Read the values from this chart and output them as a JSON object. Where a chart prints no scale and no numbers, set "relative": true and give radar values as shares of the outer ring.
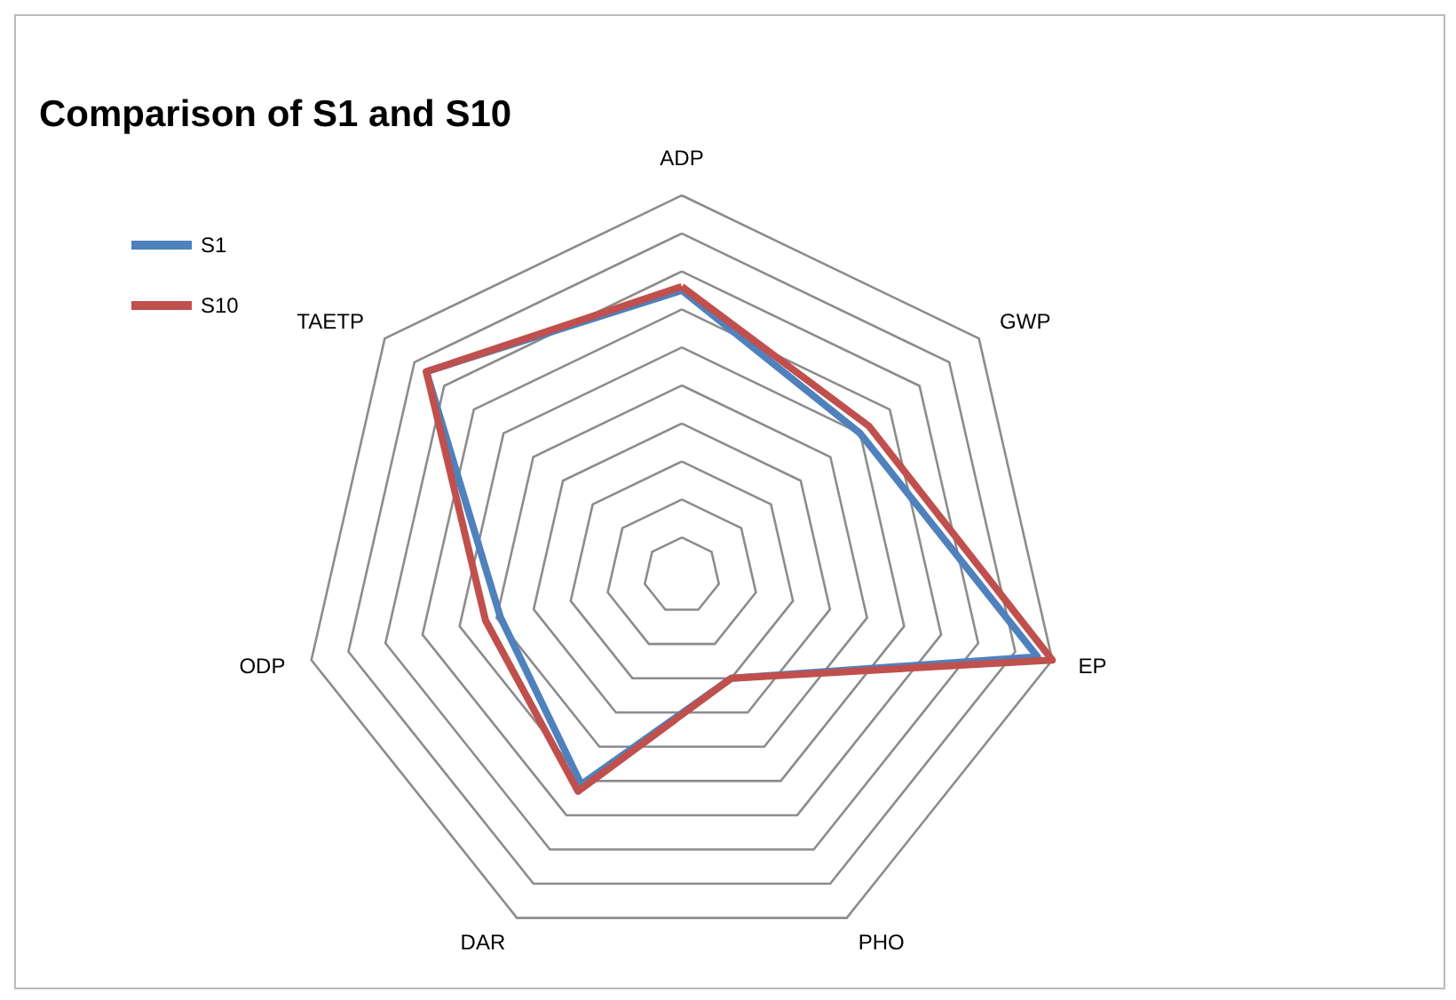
{
  "chart_data": {
    "type": "radar",
    "title": "Comparison of S1 and S10",
    "relative": true,
    "categories": [
      "ADP",
      "GWP",
      "EP",
      "PHO",
      "DAR",
      "ODP",
      "TAETP"
    ],
    "series": [
      {
        "name": "S1",
        "color": "#4f81bd",
        "values": [
          0.75,
          0.6,
          0.96,
          0.3,
          0.61,
          0.49,
          0.86
        ]
      },
      {
        "name": "S10",
        "color": "#c0504d",
        "values": [
          0.76,
          0.63,
          1.0,
          0.3,
          0.63,
          0.53,
          0.86
        ]
      }
    ],
    "legend": "top left",
    "marker": "none"
  }
}
